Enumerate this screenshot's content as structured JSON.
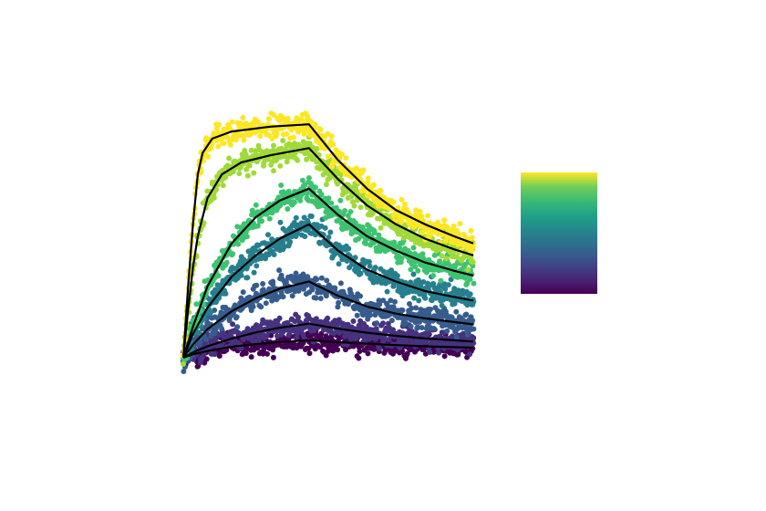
{
  "chart_data": {
    "type": "scatter",
    "title": "",
    "xlabel": "",
    "ylabel": "",
    "grid": false,
    "axes_visible": false,
    "xlim": [
      0,
      300
    ],
    "ylim": [
      0,
      100
    ],
    "association_end": 130,
    "marker": "circle",
    "fit_line_color": "#000000",
    "colorbar": {
      "colormap": "viridis",
      "tick_labels": []
    },
    "series": [
      {
        "color": "#440154",
        "ka": 0.04,
        "kd": 0.006,
        "noise": 2.4,
        "fit": [
          [
            0,
            0
          ],
          [
            10,
            1.4
          ],
          [
            25,
            2.8
          ],
          [
            50,
            4.6
          ],
          [
            75,
            5.7
          ],
          [
            100,
            6.6
          ],
          [
            130,
            7.3
          ],
          [
            160,
            6.5
          ],
          [
            190,
            5.9
          ],
          [
            220,
            5.3
          ],
          [
            250,
            4.8
          ],
          [
            280,
            4.4
          ],
          [
            300,
            4.2
          ]
        ]
      },
      {
        "color": "#46327e",
        "ka": 0.035,
        "kd": 0.006,
        "noise": 2.4,
        "fit": [
          [
            0,
            0
          ],
          [
            10,
            2.2
          ],
          [
            25,
            4.8
          ],
          [
            50,
            8.0
          ],
          [
            75,
            10.6
          ],
          [
            100,
            12.6
          ],
          [
            130,
            14.3
          ],
          [
            160,
            12.2
          ],
          [
            190,
            10.5
          ],
          [
            220,
            9.2
          ],
          [
            250,
            8.1
          ],
          [
            280,
            7.3
          ],
          [
            300,
            6.8
          ]
        ]
      },
      {
        "color": "#365c8d",
        "ka": 0.025,
        "kd": 0.008,
        "noise": 2.4,
        "fit": [
          [
            0,
            0
          ],
          [
            10,
            5.5
          ],
          [
            25,
            12.0
          ],
          [
            50,
            19.5
          ],
          [
            75,
            25.0
          ],
          [
            100,
            29.0
          ],
          [
            130,
            32.0
          ],
          [
            160,
            26.0
          ],
          [
            190,
            21.5
          ],
          [
            220,
            18.5
          ],
          [
            250,
            16.5
          ],
          [
            280,
            15.0
          ],
          [
            300,
            14.0
          ]
        ]
      },
      {
        "color": "#277f8e",
        "ka": 0.024,
        "kd": 0.01,
        "noise": 2.4,
        "fit": [
          [
            0,
            0
          ],
          [
            10,
            10.0
          ],
          [
            25,
            21.0
          ],
          [
            50,
            34.0
          ],
          [
            75,
            43.0
          ],
          [
            100,
            50.0
          ],
          [
            130,
            56.0
          ],
          [
            160,
            45.0
          ],
          [
            190,
            37.0
          ],
          [
            220,
            32.0
          ],
          [
            250,
            28.0
          ],
          [
            280,
            25.5
          ],
          [
            300,
            24.0
          ]
        ]
      },
      {
        "color": "#3ec370",
        "ka": 0.022,
        "kd": 0.008,
        "noise": 2.4,
        "fit": [
          [
            0,
            0
          ],
          [
            10,
            13.0
          ],
          [
            25,
            30.0
          ],
          [
            50,
            48.0
          ],
          [
            75,
            59.0
          ],
          [
            100,
            66.0
          ],
          [
            130,
            71.0
          ],
          [
            160,
            60.0
          ],
          [
            190,
            51.0
          ],
          [
            220,
            45.0
          ],
          [
            250,
            40.0
          ],
          [
            280,
            36.5
          ],
          [
            300,
            34.5
          ]
        ]
      },
      {
        "color": "#a0da39",
        "ka": 0.06,
        "kd": 0.01,
        "noise": 2.4,
        "fit": [
          [
            0,
            0
          ],
          [
            5,
            20.0
          ],
          [
            10,
            38.0
          ],
          [
            15,
            51.0
          ],
          [
            25,
            67.0
          ],
          [
            40,
            77.0
          ],
          [
            60,
            82.0
          ],
          [
            90,
            85.0
          ],
          [
            130,
            88.0
          ],
          [
            160,
            75.0
          ],
          [
            190,
            64.0
          ],
          [
            220,
            56.0
          ],
          [
            250,
            50.0
          ],
          [
            280,
            45.5
          ],
          [
            300,
            43.0
          ]
        ]
      },
      {
        "color": "#fde725",
        "ka": 0.12,
        "kd": 0.012,
        "noise": 2.4,
        "fit": [
          [
            0,
            0
          ],
          [
            5,
            30.0
          ],
          [
            10,
            56.0
          ],
          [
            15,
            77.0
          ],
          [
            20,
            86.0
          ],
          [
            30,
            92.0
          ],
          [
            50,
            95.0
          ],
          [
            90,
            97.0
          ],
          [
            130,
            98.0
          ],
          [
            160,
            83.0
          ],
          [
            190,
            71.0
          ],
          [
            220,
            62.0
          ],
          [
            250,
            56.0
          ],
          [
            280,
            51.0
          ],
          [
            300,
            48.0
          ]
        ]
      }
    ]
  }
}
